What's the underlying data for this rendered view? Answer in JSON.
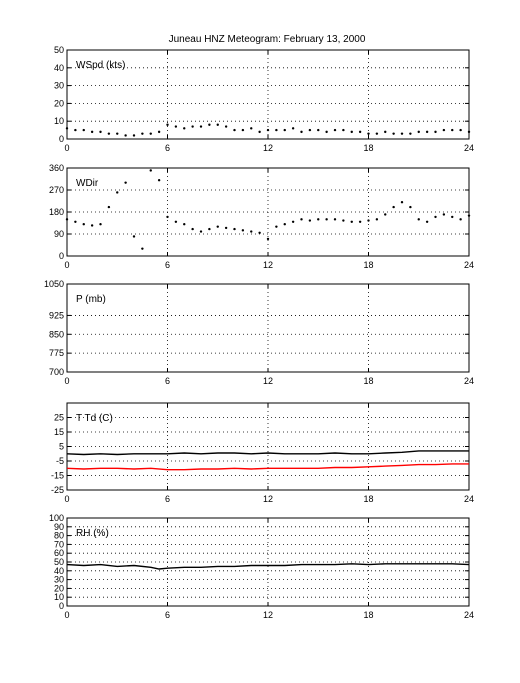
{
  "title": "Juneau HNZ Meteogram:  February 13, 2000",
  "chart_data": [
    {
      "type": "scatter",
      "label": "WSpd (kts)",
      "xlim": [
        0,
        24
      ],
      "xticks": [
        0,
        6,
        12,
        18,
        24
      ],
      "ylim": [
        0,
        50
      ],
      "yticks": [
        0,
        10,
        20,
        30,
        40,
        50
      ],
      "grid": true,
      "series": [
        {
          "color": "#000000",
          "x": [
            0,
            0.5,
            1,
            1.5,
            2,
            2.5,
            3,
            3.5,
            4,
            4.5,
            5,
            5.5,
            6,
            6.5,
            7,
            7.5,
            8,
            8.5,
            9,
            9.5,
            10,
            10.5,
            11,
            11.5,
            12,
            12.5,
            13,
            13.5,
            14,
            14.5,
            15,
            15.5,
            16,
            16.5,
            17,
            17.5,
            18,
            18.5,
            19,
            19.5,
            20,
            20.5,
            21,
            21.5,
            22,
            22.5,
            23,
            23.5,
            24
          ],
          "y": [
            6,
            5,
            5,
            4,
            4,
            3,
            3,
            2,
            2,
            3,
            3,
            4,
            8,
            7,
            6,
            7,
            7,
            8,
            8,
            7,
            5,
            5,
            6,
            4,
            5,
            5,
            5,
            6,
            4,
            5,
            5,
            4,
            5,
            5,
            4,
            4,
            3,
            3,
            4,
            3,
            3,
            3,
            4,
            4,
            4,
            5,
            5,
            5,
            4
          ]
        }
      ]
    },
    {
      "type": "scatter",
      "label": "WDir",
      "xlim": [
        0,
        24
      ],
      "xticks": [
        0,
        6,
        12,
        18,
        24
      ],
      "ylim": [
        0,
        360
      ],
      "yticks": [
        0,
        90,
        180,
        270,
        360
      ],
      "grid": true,
      "series": [
        {
          "color": "#000000",
          "x": [
            0,
            0.5,
            1,
            1.5,
            2,
            2.5,
            3,
            3.5,
            4,
            4.5,
            5,
            5.5,
            6,
            6.5,
            7,
            7.5,
            8,
            8.5,
            9,
            9.5,
            10,
            10.5,
            11,
            11.5,
            12,
            12.5,
            13,
            13.5,
            14,
            14.5,
            15,
            15.5,
            16,
            16.5,
            17,
            17.5,
            18,
            18.5,
            19,
            19.5,
            20,
            20.5,
            21,
            21.5,
            22,
            22.5,
            23,
            23.5,
            24
          ],
          "y": [
            150,
            140,
            130,
            125,
            130,
            200,
            260,
            300,
            80,
            30,
            350,
            310,
            160,
            140,
            130,
            110,
            100,
            110,
            120,
            115,
            110,
            105,
            100,
            95,
            70,
            120,
            130,
            140,
            150,
            145,
            150,
            150,
            150,
            145,
            140,
            140,
            145,
            150,
            170,
            200,
            220,
            200,
            150,
            140,
            160,
            170,
            160,
            150,
            165
          ]
        }
      ]
    },
    {
      "type": "scatter",
      "label": "P (mb)",
      "xlim": [
        0,
        24
      ],
      "xticks": [
        0,
        6,
        12,
        18,
        24
      ],
      "ylim": [
        700,
        1050
      ],
      "yticks": [
        700,
        775,
        850,
        925,
        1050
      ],
      "grid": true,
      "series": []
    },
    {
      "type": "line",
      "label": "T Td (C)",
      "xlim": [
        0,
        24
      ],
      "xticks": [
        0,
        6,
        12,
        18,
        24
      ],
      "ylim": [
        -25,
        35
      ],
      "yticks": [
        -25,
        -15,
        -5,
        5,
        15,
        25
      ],
      "grid": true,
      "series": [
        {
          "color": "#000000",
          "x": [
            0,
            1,
            2,
            3,
            4,
            5,
            6,
            7,
            8,
            9,
            10,
            11,
            12,
            13,
            14,
            15,
            16,
            17,
            18,
            19,
            20,
            21,
            22,
            23,
            24
          ],
          "y": [
            0,
            -0.5,
            0,
            -0.5,
            0,
            0,
            0,
            0.5,
            0,
            0.5,
            0.5,
            0,
            0.5,
            0,
            0,
            0,
            0.5,
            0,
            0,
            0.5,
            1,
            2,
            2,
            2,
            2
          ]
        },
        {
          "color": "#ff0000",
          "x": [
            0,
            1,
            2,
            3,
            4,
            5,
            6,
            7,
            8,
            9,
            10,
            11,
            12,
            13,
            14,
            15,
            16,
            17,
            18,
            19,
            20,
            21,
            22,
            23,
            24
          ],
          "y": [
            -10,
            -10.5,
            -10,
            -10,
            -10.5,
            -10,
            -11,
            -11,
            -10.5,
            -10.5,
            -10,
            -10.5,
            -10,
            -10,
            -10,
            -10,
            -9.5,
            -9.5,
            -9,
            -8.5,
            -8,
            -7.5,
            -7.5,
            -7,
            -7
          ]
        }
      ]
    },
    {
      "type": "line",
      "label": "RH (%)",
      "xlim": [
        0,
        24
      ],
      "xticks": [
        0,
        6,
        12,
        18,
        24
      ],
      "ylim": [
        0,
        100
      ],
      "yticks": [
        0,
        10,
        20,
        30,
        40,
        50,
        60,
        70,
        80,
        90,
        100
      ],
      "grid": true,
      "series": [
        {
          "color": "#000000",
          "x": [
            0,
            1,
            2,
            3,
            4,
            5,
            5.5,
            6,
            7,
            8,
            9,
            10,
            11,
            12,
            13,
            14,
            15,
            16,
            17,
            18,
            19,
            20,
            21,
            22,
            23,
            24
          ],
          "y": [
            47,
            46,
            47,
            45,
            46,
            44,
            42,
            43,
            44,
            44,
            45,
            45,
            46,
            46,
            46,
            47,
            47,
            47,
            48,
            47,
            48,
            48,
            48,
            48,
            48,
            47
          ]
        }
      ]
    }
  ]
}
